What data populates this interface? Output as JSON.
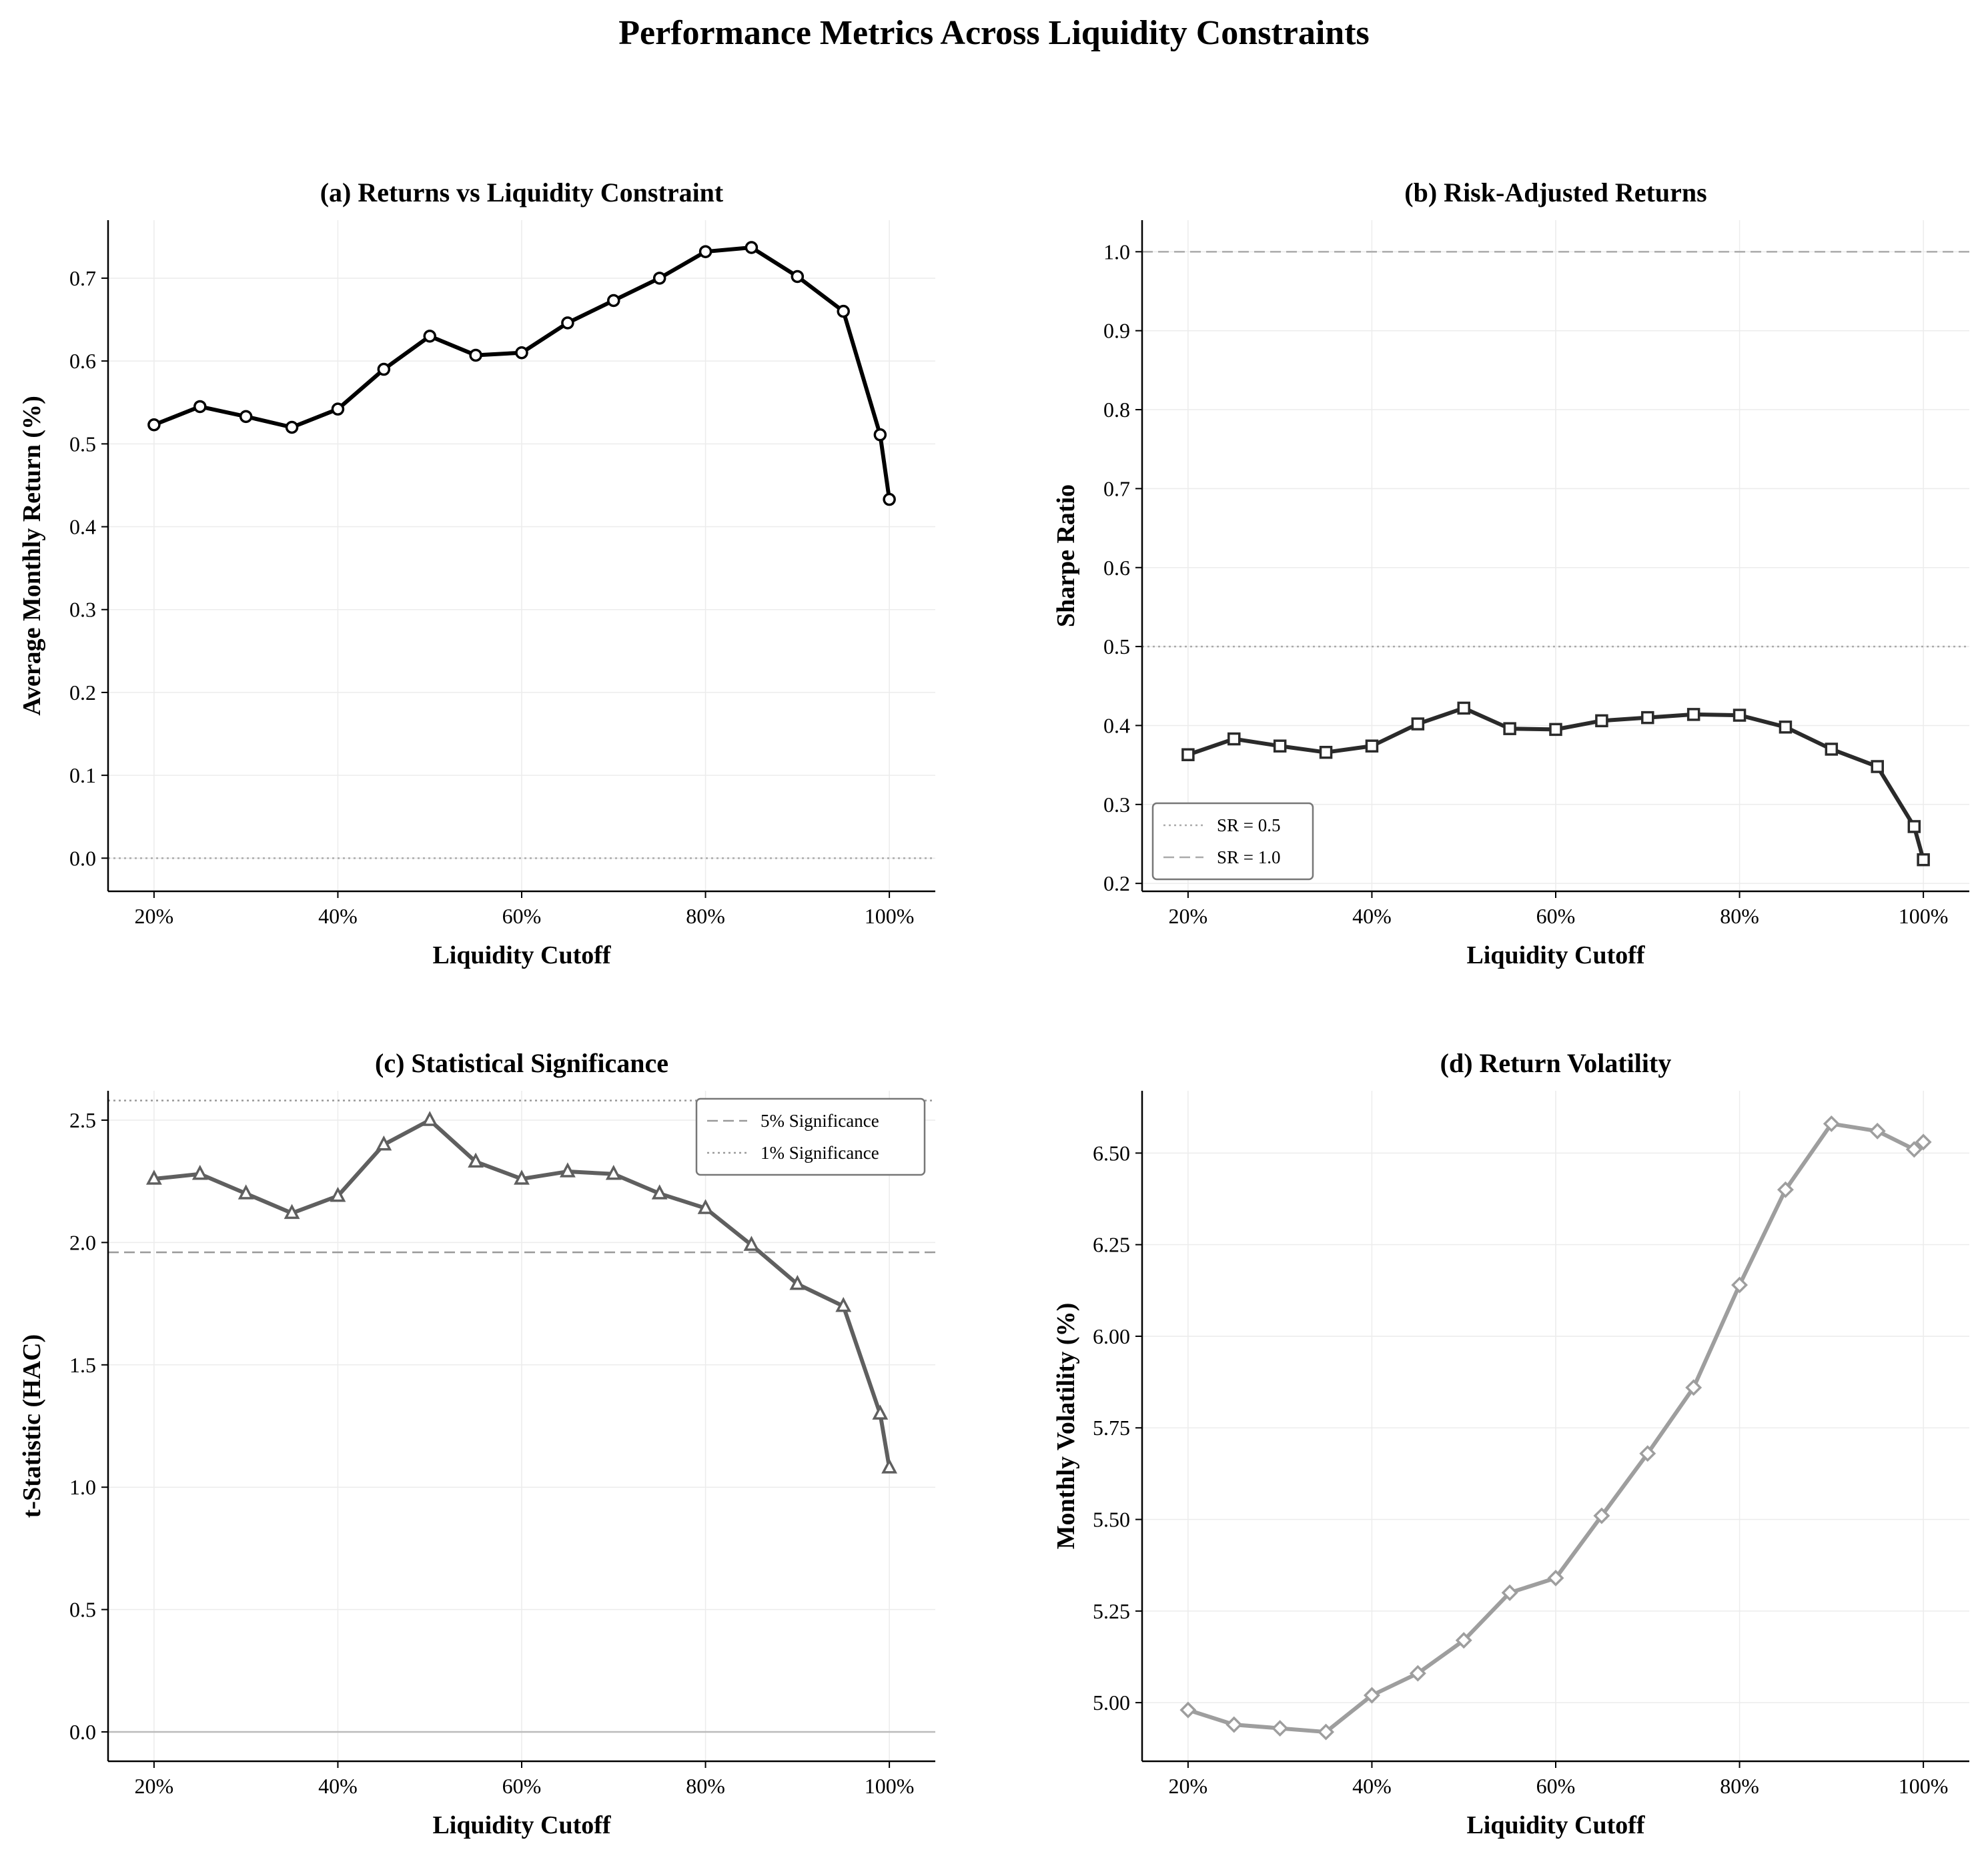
{
  "figure": {
    "title": "Performance Metrics Across Liquidity Constraints"
  },
  "chart_data": [
    {
      "id": "a",
      "type": "line",
      "title": "(a) Returns vs Liquidity Constraint",
      "xlabel": "Liquidity Cutoff",
      "ylabel": "Average Monthly Return (%)",
      "x": [
        20,
        25,
        30,
        35,
        40,
        45,
        50,
        55,
        60,
        65,
        70,
        75,
        80,
        85,
        90,
        95,
        99,
        100
      ],
      "series": [
        {
          "values": [
            0.523,
            0.545,
            0.533,
            0.52,
            0.542,
            0.59,
            0.63,
            0.607,
            0.61,
            0.646,
            0.673,
            0.7,
            0.732,
            0.737,
            0.702,
            0.66,
            0.511,
            0.433
          ],
          "color": "#000000",
          "marker": "circle"
        }
      ],
      "xlim": [
        15,
        105
      ],
      "ylim": [
        -0.04,
        0.77
      ],
      "xticks": [
        20,
        40,
        60,
        80,
        100
      ],
      "xtick_labels": [
        "20%",
        "40%",
        "60%",
        "80%",
        "100%"
      ],
      "yticks": [
        0.0,
        0.1,
        0.2,
        0.3,
        0.4,
        0.5,
        0.6,
        0.7
      ],
      "ytick_labels": [
        "0.0",
        "0.1",
        "0.2",
        "0.3",
        "0.4",
        "0.5",
        "0.6",
        "0.7"
      ],
      "reference_lines": [
        {
          "y": 0.0,
          "style": "dotted",
          "color": "#aaaaaa"
        }
      ],
      "grid": true
    },
    {
      "id": "b",
      "type": "line",
      "title": "(b) Risk-Adjusted Returns",
      "xlabel": "Liquidity Cutoff",
      "ylabel": "Sharpe Ratio",
      "x": [
        20,
        25,
        30,
        35,
        40,
        45,
        50,
        55,
        60,
        65,
        70,
        75,
        80,
        85,
        90,
        95,
        99,
        100
      ],
      "series": [
        {
          "values": [
            0.363,
            0.383,
            0.374,
            0.366,
            0.374,
            0.402,
            0.422,
            0.396,
            0.395,
            0.406,
            0.41,
            0.414,
            0.413,
            0.398,
            0.37,
            0.348,
            0.272,
            0.23
          ],
          "color": "#2a2a2a",
          "marker": "square"
        }
      ],
      "xlim": [
        15,
        105
      ],
      "ylim": [
        0.19,
        1.04
      ],
      "xticks": [
        20,
        40,
        60,
        80,
        100
      ],
      "xtick_labels": [
        "20%",
        "40%",
        "60%",
        "80%",
        "100%"
      ],
      "yticks": [
        0.2,
        0.3,
        0.4,
        0.5,
        0.6,
        0.7,
        0.8,
        0.9,
        1.0
      ],
      "ytick_labels": [
        "0.2",
        "0.3",
        "0.4",
        "0.5",
        "0.6",
        "0.7",
        "0.8",
        "0.9",
        "1.0"
      ],
      "reference_lines": [
        {
          "y": 0.5,
          "style": "dotted",
          "color": "#aaaaaa",
          "label": "SR = 0.5"
        },
        {
          "y": 1.0,
          "style": "dashed",
          "color": "#aaaaaa",
          "label": "SR = 1.0"
        }
      ],
      "legend": {
        "position": "lower-left",
        "entries": [
          "SR = 0.5",
          "SR = 1.0"
        ]
      },
      "grid": true
    },
    {
      "id": "c",
      "type": "line",
      "title": "(c) Statistical Significance",
      "xlabel": "Liquidity Cutoff",
      "ylabel": "t-Statistic (HAC)",
      "x": [
        20,
        25,
        30,
        35,
        40,
        45,
        50,
        55,
        60,
        65,
        70,
        75,
        80,
        85,
        90,
        95,
        99,
        100
      ],
      "series": [
        {
          "values": [
            2.26,
            2.28,
            2.2,
            2.12,
            2.19,
            2.4,
            2.5,
            2.33,
            2.26,
            2.29,
            2.28,
            2.2,
            2.14,
            1.99,
            1.83,
            1.74,
            1.3,
            1.08
          ],
          "color": "#5f5f5f",
          "marker": "triangle"
        }
      ],
      "xlim": [
        15,
        105
      ],
      "ylim": [
        -0.12,
        2.62
      ],
      "xticks": [
        20,
        40,
        60,
        80,
        100
      ],
      "xtick_labels": [
        "20%",
        "40%",
        "60%",
        "80%",
        "100%"
      ],
      "yticks": [
        0.0,
        0.5,
        1.0,
        1.5,
        2.0,
        2.5
      ],
      "ytick_labels": [
        "0.0",
        "0.5",
        "1.0",
        "1.5",
        "2.0",
        "2.5"
      ],
      "reference_lines": [
        {
          "y": 1.96,
          "style": "dashed",
          "color": "#999999",
          "label": "5% Significance"
        },
        {
          "y": 2.58,
          "style": "dotted",
          "color": "#999999",
          "label": "1% Significance"
        },
        {
          "y": 0.0,
          "style": "solid",
          "color": "#bbbbbb"
        }
      ],
      "legend": {
        "position": "upper-right",
        "entries": [
          "5% Significance",
          "1% Significance"
        ]
      },
      "grid": true
    },
    {
      "id": "d",
      "type": "line",
      "title": "(d) Return Volatility",
      "xlabel": "Liquidity Cutoff",
      "ylabel": "Monthly Volatility (%)",
      "x": [
        20,
        25,
        30,
        35,
        40,
        45,
        50,
        55,
        60,
        65,
        70,
        75,
        80,
        85,
        90,
        95,
        99,
        100
      ],
      "series": [
        {
          "values": [
            4.98,
            4.94,
            4.93,
            4.92,
            5.02,
            5.08,
            5.17,
            5.3,
            5.34,
            5.51,
            5.68,
            5.86,
            6.14,
            6.4,
            6.58,
            6.56,
            6.51,
            6.53
          ],
          "color": "#9e9e9e",
          "marker": "diamond"
        }
      ],
      "xlim": [
        15,
        105
      ],
      "ylim": [
        4.84,
        6.67
      ],
      "xticks": [
        20,
        40,
        60,
        80,
        100
      ],
      "xtick_labels": [
        "20%",
        "40%",
        "60%",
        "80%",
        "100%"
      ],
      "yticks": [
        5.0,
        5.25,
        5.5,
        5.75,
        6.0,
        6.25,
        6.5
      ],
      "ytick_labels": [
        "5.00",
        "5.25",
        "5.50",
        "5.75",
        "6.00",
        "6.25",
        "6.50"
      ],
      "reference_lines": [],
      "grid": true
    }
  ]
}
